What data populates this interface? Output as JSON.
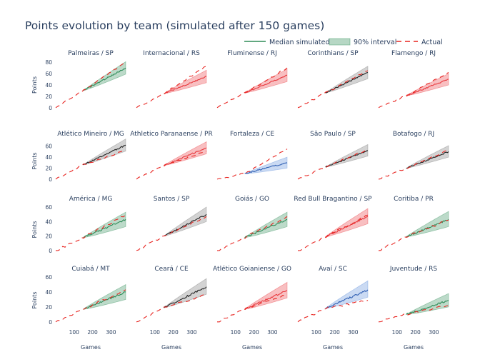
{
  "chart_data": {
    "type": "line",
    "title": "Points evolution by team (simulated after 150 games)",
    "legend": {
      "placement": "top-right",
      "entries": [
        {
          "label": "Median simulated",
          "kind": "line"
        },
        {
          "label": "90% interval",
          "kind": "band"
        },
        {
          "label": "Actual",
          "kind": "dash"
        }
      ]
    },
    "xlabel": "Games",
    "ylabel": "Points",
    "x_ticks": [
      100,
      200,
      300
    ],
    "x_range": [
      0,
      380
    ],
    "start_game": 150,
    "colors": {
      "green": "#2e8b57",
      "green_band": "#2e8b57",
      "red": "#e8383d",
      "red_band": "#e8383d",
      "black": "#222222",
      "black_band": "#777777",
      "blue": "#2f5fb3",
      "blue_band": "#5b8bd9",
      "actual": "#e8231f",
      "text": "#2a3f5f"
    },
    "rows": [
      {
        "y_ticks": [
          0,
          20,
          40,
          60,
          80
        ],
        "y_range": [
          -4,
          84
        ]
      },
      {
        "y_ticks": [
          0,
          20,
          40,
          60
        ],
        "y_range": [
          -4,
          70
        ]
      },
      {
        "y_ticks": [
          0,
          20,
          40,
          60
        ],
        "y_range": [
          -4,
          62
        ]
      },
      {
        "y_ticks": [
          0,
          20,
          40,
          60
        ],
        "y_range": [
          -4,
          62
        ]
      }
    ],
    "teams": [
      {
        "name": "Palmeiras / SP",
        "color": "green",
        "start_pts": 30,
        "median_end": 70,
        "low_end": 59,
        "high_end": 81,
        "actual_end": 80
      },
      {
        "name": "Internacional / RS",
        "color": "red",
        "start_pts": 25,
        "median_end": 55,
        "low_end": 44,
        "high_end": 66,
        "actual_end": 73
      },
      {
        "name": "Fluminense / RJ",
        "color": "red",
        "start_pts": 26,
        "median_end": 57,
        "low_end": 46,
        "high_end": 68,
        "actual_end": 70
      },
      {
        "name": "Corinthians / SP",
        "color": "black",
        "start_pts": 26,
        "median_end": 62,
        "low_end": 51,
        "high_end": 73,
        "actual_end": 65
      },
      {
        "name": "Flamengo / RJ",
        "color": "red",
        "start_pts": 21,
        "median_end": 50,
        "low_end": 40,
        "high_end": 60,
        "actual_end": 62
      },
      {
        "name": "Atlético Mineiro / MG",
        "color": "black",
        "start_pts": 26,
        "median_end": 62,
        "low_end": 51,
        "high_end": 73,
        "actual_end": 52
      },
      {
        "name": "Athletico Paranaense / PR",
        "color": "red",
        "start_pts": 25,
        "median_end": 57,
        "low_end": 46,
        "high_end": 68,
        "actual_end": 51
      },
      {
        "name": "Fortaleza / CE",
        "color": "blue",
        "start_pts": 10,
        "median_end": 30,
        "low_end": 20,
        "high_end": 40,
        "actual_end": 55
      },
      {
        "name": "São Paulo / SP",
        "color": "black",
        "start_pts": 22,
        "median_end": 52,
        "low_end": 42,
        "high_end": 63,
        "actual_end": 54
      },
      {
        "name": "Botafogo / RJ",
        "color": "black",
        "start_pts": 20,
        "median_end": 50,
        "low_end": 40,
        "high_end": 61,
        "actual_end": 53
      },
      {
        "name": "América / MG",
        "color": "green",
        "start_pts": 18,
        "median_end": 43,
        "low_end": 33,
        "high_end": 53,
        "actual_end": 49
      },
      {
        "name": "Santos / SP",
        "color": "black",
        "start_pts": 20,
        "median_end": 50,
        "low_end": 40,
        "high_end": 60,
        "actual_end": 47
      },
      {
        "name": "Goiás / GO",
        "color": "green",
        "start_pts": 18,
        "median_end": 43,
        "low_end": 33,
        "high_end": 53,
        "actual_end": 47
      },
      {
        "name": "Red Bull Bragantino / SP",
        "color": "red",
        "start_pts": 19,
        "median_end": 47,
        "low_end": 37,
        "high_end": 58,
        "actual_end": 49
      },
      {
        "name": "Coritiba / PR",
        "color": "green",
        "start_pts": 19,
        "median_end": 43,
        "low_end": 33,
        "high_end": 54,
        "actual_end": 42
      },
      {
        "name": "Cuiabá / MT",
        "color": "green",
        "start_pts": 17,
        "median_end": 40,
        "low_end": 30,
        "high_end": 50,
        "actual_end": 43
      },
      {
        "name": "Ceará / CE",
        "color": "black",
        "start_pts": 19,
        "median_end": 47,
        "low_end": 37,
        "high_end": 58,
        "actual_end": 36
      },
      {
        "name": "Atlético Goianiense / GO",
        "color": "red",
        "start_pts": 17,
        "median_end": 42,
        "low_end": 32,
        "high_end": 53,
        "actual_end": 36
      },
      {
        "name": "Avaí / SC",
        "color": "blue",
        "start_pts": 18,
        "median_end": 43,
        "low_end": 33,
        "high_end": 55,
        "actual_end": 29
      },
      {
        "name": "Juventude / RS",
        "color": "green",
        "start_pts": 10,
        "median_end": 29,
        "low_end": 20,
        "high_end": 38,
        "actual_end": 22
      }
    ]
  }
}
